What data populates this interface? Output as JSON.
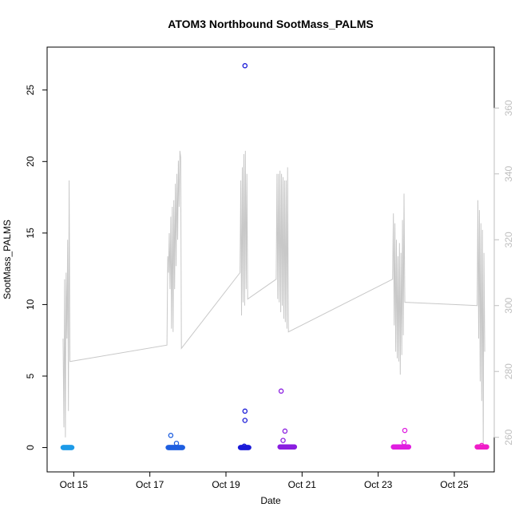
{
  "chart_data": {
    "type": "scatter",
    "title": "ATOM3 Northbound SootMass_PALMS",
    "xlabel": "Date",
    "ylabel": "SootMass_PALMS",
    "x_range_days": [
      14.3,
      26.05
    ],
    "ylim": [
      -1.7,
      28
    ],
    "y2lim": [
      249.5,
      378.5
    ],
    "y_ticks": [
      0,
      5,
      10,
      15,
      20,
      25
    ],
    "y2_ticks": [
      260,
      280,
      300,
      320,
      340,
      360
    ],
    "x_ticks": [
      {
        "day": 15,
        "label": "Oct 15"
      },
      {
        "day": 17,
        "label": "Oct 17"
      },
      {
        "day": 19,
        "label": "Oct 19"
      },
      {
        "day": 21,
        "label": "Oct 21"
      },
      {
        "day": 23,
        "label": "Oct 23"
      },
      {
        "day": 25,
        "label": "Oct 25"
      }
    ],
    "grid": false,
    "colors": {
      "flight1": "#1e9be8",
      "flight2": "#1f5fe0",
      "flight3": "#1a1ad8",
      "flight4": "#8a1ee0",
      "flight5": "#e01ee0",
      "flight6": "#f01ec8",
      "secondary_line": "#c8c8c8"
    },
    "scatter_series": [
      {
        "color_key": "flight1",
        "x_start": 14.72,
        "x_end": 14.95,
        "y_base": 0.0,
        "outliers": []
      },
      {
        "color_key": "flight2",
        "x_start": 17.48,
        "x_end": 17.86,
        "y_base": 0.0,
        "outliers": [
          [
            17.55,
            0.85
          ],
          [
            17.7,
            0.3
          ]
        ]
      },
      {
        "color_key": "flight3",
        "x_start": 19.38,
        "x_end": 19.6,
        "y_base": 0.0,
        "outliers": [
          [
            19.5,
            26.7
          ],
          [
            19.5,
            2.55
          ],
          [
            19.5,
            1.9
          ],
          [
            19.48,
            0.1
          ]
        ]
      },
      {
        "color_key": "flight4",
        "x_start": 20.42,
        "x_end": 20.8,
        "y_base": 0.05,
        "outliers": [
          [
            20.45,
            3.95
          ],
          [
            20.55,
            1.15
          ],
          [
            20.5,
            0.5
          ]
        ]
      },
      {
        "color_key": "flight5",
        "x_start": 23.4,
        "x_end": 23.8,
        "y_base": 0.05,
        "outliers": [
          [
            23.7,
            1.2
          ],
          [
            23.68,
            0.35
          ]
        ]
      },
      {
        "color_key": "flight6",
        "x_start": 25.6,
        "x_end": 25.85,
        "y_base": 0.05,
        "outliers": [
          [
            25.72,
            0.15
          ]
        ]
      }
    ],
    "secondary_line": [
      [
        14.72,
        290
      ],
      [
        14.74,
        263
      ],
      [
        14.76,
        308
      ],
      [
        14.78,
        260
      ],
      [
        14.8,
        310
      ],
      [
        14.82,
        290
      ],
      [
        14.84,
        320
      ],
      [
        14.86,
        268
      ],
      [
        14.88,
        338
      ],
      [
        14.9,
        283
      ],
      [
        17.45,
        288
      ],
      [
        17.47,
        315
      ],
      [
        17.49,
        310
      ],
      [
        17.51,
        322
      ],
      [
        17.53,
        305
      ],
      [
        17.55,
        327
      ],
      [
        17.57,
        293
      ],
      [
        17.59,
        330
      ],
      [
        17.61,
        292
      ],
      [
        17.63,
        332
      ],
      [
        17.65,
        305
      ],
      [
        17.67,
        337
      ],
      [
        17.69,
        312
      ],
      [
        17.71,
        340
      ],
      [
        17.73,
        320
      ],
      [
        17.75,
        344
      ],
      [
        17.77,
        330
      ],
      [
        17.79,
        347
      ],
      [
        17.81,
        345
      ],
      [
        17.83,
        287
      ],
      [
        19.37,
        310
      ],
      [
        19.39,
        338
      ],
      [
        19.41,
        297
      ],
      [
        19.43,
        342
      ],
      [
        19.45,
        301
      ],
      [
        19.47,
        346
      ],
      [
        19.49,
        300
      ],
      [
        19.51,
        347
      ],
      [
        19.53,
        305
      ],
      [
        19.55,
        340
      ],
      [
        19.57,
        302
      ],
      [
        20.32,
        308
      ],
      [
        20.34,
        340
      ],
      [
        20.36,
        302
      ],
      [
        20.38,
        340
      ],
      [
        20.4,
        301
      ],
      [
        20.42,
        341
      ],
      [
        20.44,
        298
      ],
      [
        20.46,
        340
      ],
      [
        20.48,
        300
      ],
      [
        20.5,
        339
      ],
      [
        20.52,
        296
      ],
      [
        20.54,
        338
      ],
      [
        20.56,
        295
      ],
      [
        20.58,
        338
      ],
      [
        20.6,
        293
      ],
      [
        20.62,
        342
      ],
      [
        20.64,
        292
      ],
      [
        23.38,
        308
      ],
      [
        23.4,
        328
      ],
      [
        23.42,
        294
      ],
      [
        23.44,
        325
      ],
      [
        23.46,
        286
      ],
      [
        23.48,
        320
      ],
      [
        23.5,
        284
      ],
      [
        23.52,
        315
      ],
      [
        23.54,
        283
      ],
      [
        23.56,
        319
      ],
      [
        23.58,
        279
      ],
      [
        23.6,
        316
      ],
      [
        23.62,
        285
      ],
      [
        23.64,
        326
      ],
      [
        23.66,
        291
      ],
      [
        23.68,
        334
      ],
      [
        23.7,
        301
      ],
      [
        25.6,
        300
      ],
      [
        25.62,
        332
      ],
      [
        25.64,
        290
      ],
      [
        25.66,
        329
      ],
      [
        25.68,
        277
      ],
      [
        25.7,
        325
      ],
      [
        25.72,
        271
      ],
      [
        25.74,
        323
      ],
      [
        25.76,
        258
      ],
      [
        25.78,
        316
      ],
      [
        25.8,
        286
      ]
    ]
  }
}
